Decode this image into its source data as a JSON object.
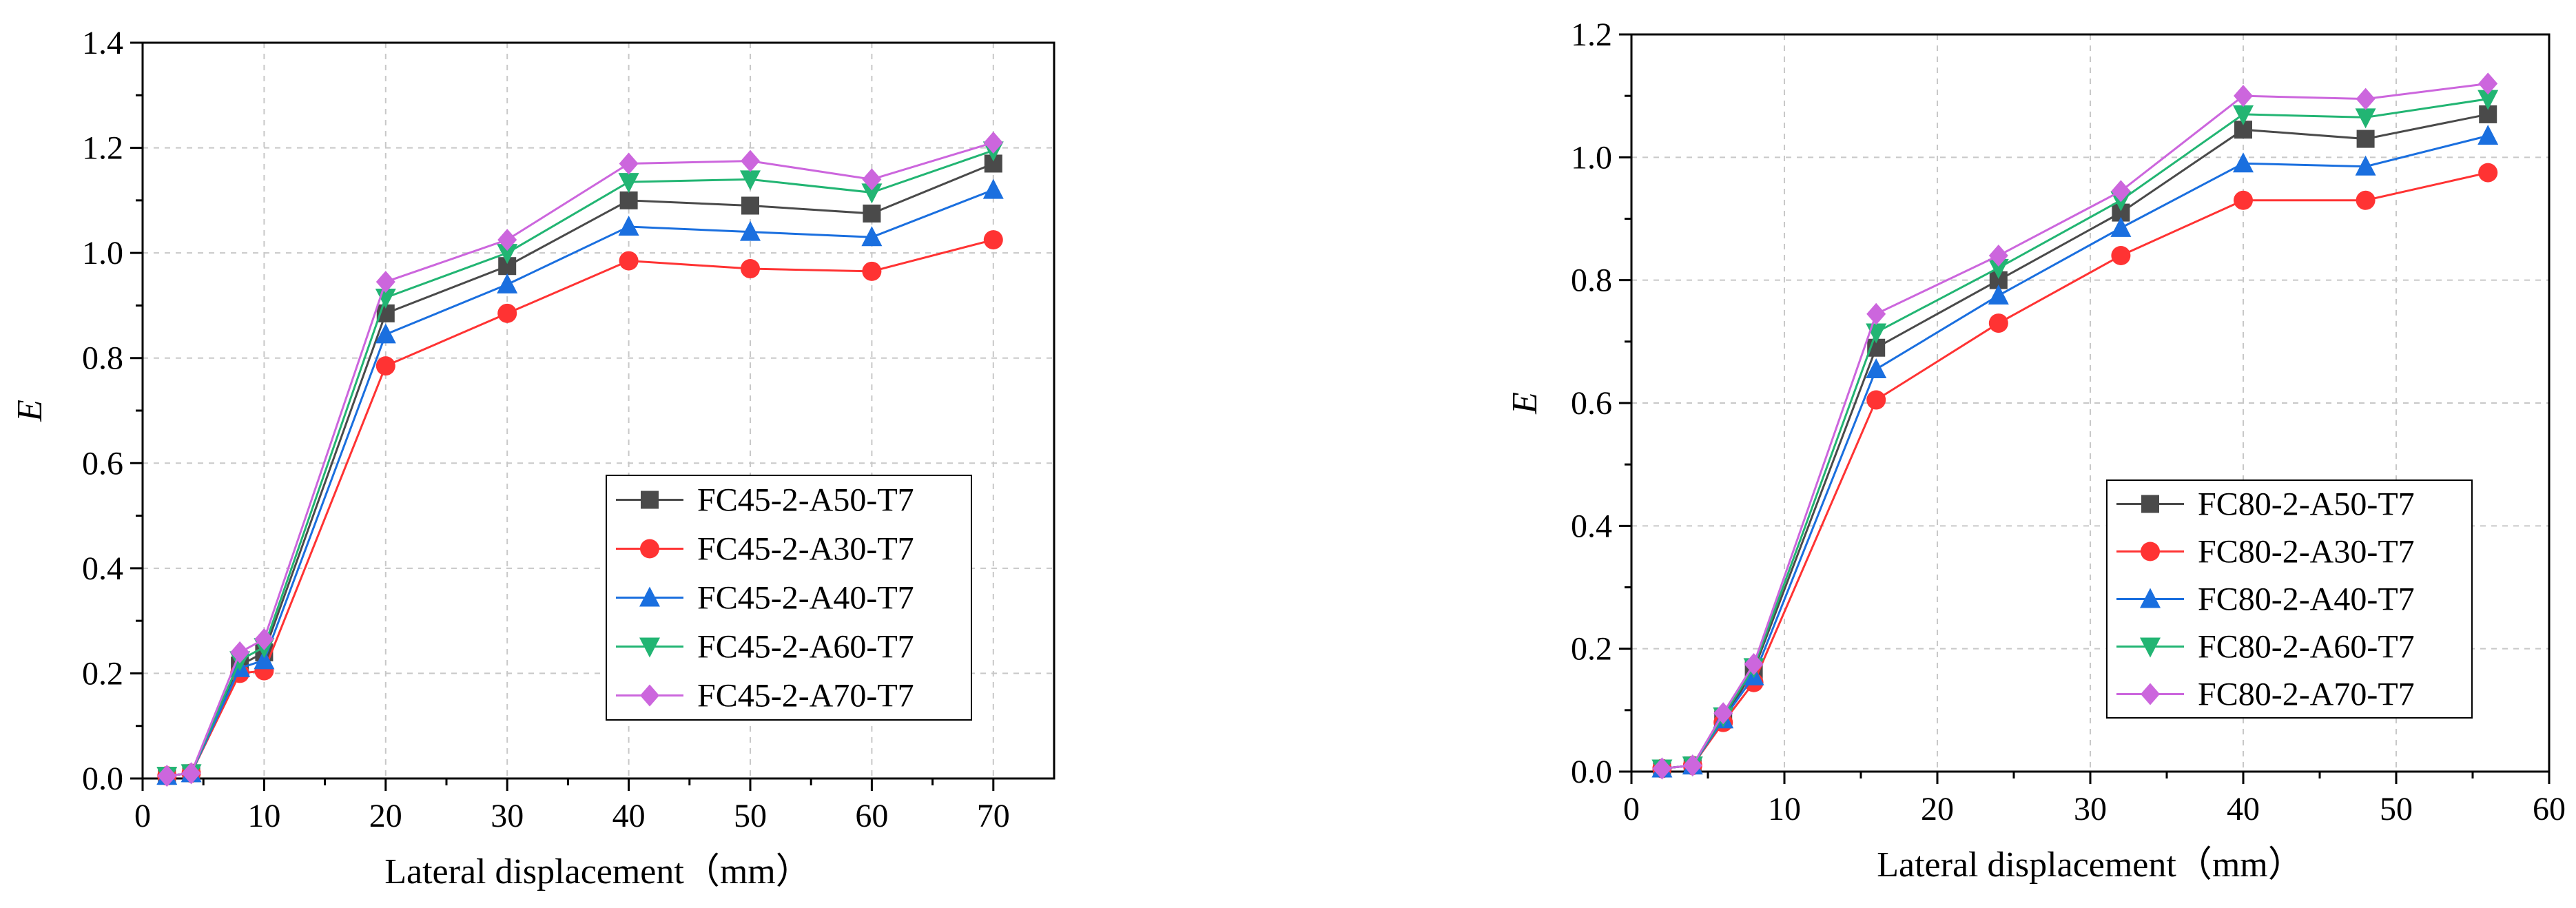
{
  "figure": {
    "panels": [
      "left",
      "right"
    ]
  },
  "chart_data": [
    {
      "type": "line",
      "id": "left",
      "title": "",
      "xlabel": "Lateral displacement（mm）",
      "ylabel": "E",
      "xlim": [
        0,
        75
      ],
      "ylim": [
        0,
        1.4
      ],
      "xticks": [
        0,
        10,
        20,
        30,
        40,
        50,
        60,
        70
      ],
      "xtick_labels": [
        "0",
        "10",
        "20",
        "30",
        "40",
        "50",
        "60",
        "70"
      ],
      "yticks": [
        0,
        0.2,
        0.4,
        0.6,
        0.8,
        1.0,
        1.2,
        1.4
      ],
      "ytick_labels": [
        "0.0",
        "0.2",
        "0.4",
        "0.6",
        "0.8",
        "1.0",
        "1.2",
        "1.4"
      ],
      "grid": true,
      "legend_position": "bottom-right",
      "series": [
        {
          "name": "FC45-2-A50-T7",
          "color": "#4a4a4a",
          "marker": "square",
          "x": [
            2,
            4,
            8,
            10,
            20,
            30,
            40,
            50,
            60,
            70
          ],
          "y": [
            0.005,
            0.01,
            0.215,
            0.24,
            0.885,
            0.975,
            1.1,
            1.09,
            1.075,
            1.17
          ]
        },
        {
          "name": "FC45-2-A30-T7",
          "color": "#ff3333",
          "marker": "circle",
          "x": [
            2,
            4,
            8,
            10,
            20,
            30,
            40,
            50,
            60,
            70
          ],
          "y": [
            0.005,
            0.01,
            0.2,
            0.205,
            0.785,
            0.885,
            0.985,
            0.97,
            0.965,
            1.025
          ]
        },
        {
          "name": "FC45-2-A40-T7",
          "color": "#1a6fdf",
          "marker": "triangle-up",
          "x": [
            2,
            4,
            8,
            10,
            20,
            30,
            40,
            50,
            60,
            70
          ],
          "y": [
            0.005,
            0.01,
            0.21,
            0.225,
            0.845,
            0.94,
            1.05,
            1.04,
            1.03,
            1.12
          ]
        },
        {
          "name": "FC45-2-A60-T7",
          "color": "#22b573",
          "marker": "triangle-down",
          "x": [
            2,
            4,
            8,
            10,
            20,
            30,
            40,
            50,
            60,
            70
          ],
          "y": [
            0.005,
            0.01,
            0.225,
            0.25,
            0.915,
            1.0,
            1.135,
            1.14,
            1.115,
            1.195
          ]
        },
        {
          "name": "FC45-2-A70-T7",
          "color": "#cc66dd",
          "marker": "diamond",
          "x": [
            2,
            4,
            8,
            10,
            20,
            30,
            40,
            50,
            60,
            70
          ],
          "y": [
            0.005,
            0.01,
            0.24,
            0.265,
            0.945,
            1.025,
            1.17,
            1.175,
            1.14,
            1.21
          ]
        }
      ]
    },
    {
      "type": "line",
      "id": "right",
      "title": "",
      "xlabel": "Lateral displacement（mm）",
      "ylabel": "E",
      "xlim": [
        0,
        60
      ],
      "ylim": [
        0,
        1.2
      ],
      "xticks": [
        0,
        10,
        20,
        30,
        40,
        50,
        60
      ],
      "xtick_labels": [
        "0",
        "10",
        "20",
        "30",
        "40",
        "50",
        "60"
      ],
      "yticks": [
        0,
        0.2,
        0.4,
        0.6,
        0.8,
        1.0,
        1.2
      ],
      "ytick_labels": [
        "0.0",
        "0.2",
        "0.4",
        "0.6",
        "0.8",
        "1.0",
        "1.2"
      ],
      "grid": true,
      "legend_position": "bottom-right",
      "series": [
        {
          "name": "FC80-2-A50-T7",
          "color": "#4a4a4a",
          "marker": "square",
          "x": [
            2,
            4,
            6,
            8,
            16,
            24,
            32,
            40,
            48,
            56
          ],
          "y": [
            0.005,
            0.01,
            0.085,
            0.165,
            0.69,
            0.8,
            0.91,
            1.045,
            1.03,
            1.07
          ]
        },
        {
          "name": "FC80-2-A30-T7",
          "color": "#ff3333",
          "marker": "circle",
          "x": [
            2,
            4,
            6,
            8,
            16,
            24,
            32,
            40,
            48,
            56
          ],
          "y": [
            0.005,
            0.01,
            0.08,
            0.145,
            0.605,
            0.73,
            0.84,
            0.93,
            0.93,
            0.975
          ]
        },
        {
          "name": "FC80-2-A40-T7",
          "color": "#1a6fdf",
          "marker": "triangle-up",
          "x": [
            2,
            4,
            6,
            8,
            16,
            24,
            32,
            40,
            48,
            56
          ],
          "y": [
            0.005,
            0.01,
            0.085,
            0.155,
            0.655,
            0.775,
            0.885,
            0.99,
            0.985,
            1.035
          ]
        },
        {
          "name": "FC80-2-A60-T7",
          "color": "#22b573",
          "marker": "triangle-down",
          "x": [
            2,
            4,
            6,
            8,
            16,
            24,
            32,
            40,
            48,
            56
          ],
          "y": [
            0.005,
            0.01,
            0.09,
            0.17,
            0.715,
            0.82,
            0.93,
            1.07,
            1.065,
            1.095
          ]
        },
        {
          "name": "FC80-2-A70-T7",
          "color": "#cc66dd",
          "marker": "diamond",
          "x": [
            2,
            4,
            6,
            8,
            16,
            24,
            32,
            40,
            48,
            56
          ],
          "y": [
            0.005,
            0.01,
            0.095,
            0.175,
            0.745,
            0.84,
            0.945,
            1.1,
            1.095,
            1.12
          ]
        }
      ]
    }
  ]
}
